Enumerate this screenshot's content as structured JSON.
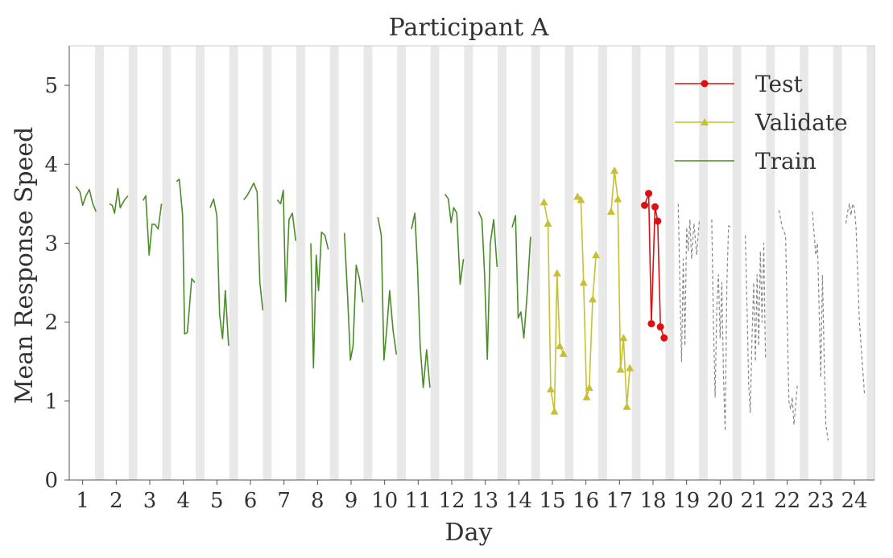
{
  "chart_data": {
    "type": "line",
    "title": "Participant A",
    "xlabel": "Day",
    "ylabel": "Mean Response Speed",
    "xlim": [
      0.6,
      24.6
    ],
    "ylim": [
      0,
      5.5
    ],
    "x_ticks": [
      1,
      2,
      3,
      4,
      5,
      6,
      7,
      8,
      9,
      10,
      11,
      12,
      13,
      14,
      15,
      16,
      17,
      18,
      19,
      20,
      21,
      22,
      23,
      24
    ],
    "y_ticks": [
      0,
      1,
      2,
      3,
      4,
      5
    ],
    "night_bands": [
      1.5,
      2.5,
      3.5,
      4.5,
      5.5,
      6.5,
      7.5,
      8.5,
      9.5,
      10.5,
      11.5,
      12.5,
      13.5,
      14.5,
      15.5,
      16.5,
      17.5,
      18.5,
      19.5,
      20.5,
      21.5,
      22.5,
      23.5,
      24.5
    ],
    "legend": {
      "position": "top-right",
      "entries": [
        "Test",
        "Validate",
        "Train"
      ]
    },
    "colors": {
      "train": "#4a8c2a",
      "validate": "#c8c030",
      "test": "#dd1111",
      "other": "#888888",
      "band": "#e8e8e8",
      "frame": "#cccccc"
    },
    "series": [
      {
        "name": "Train",
        "marker": "none",
        "style": "solid",
        "segments": [
          [
            [
              0.8,
              3.72
            ],
            [
              0.92,
              3.65
            ],
            [
              1.0,
              3.48
            ],
            [
              1.1,
              3.6
            ],
            [
              1.2,
              3.68
            ],
            [
              1.3,
              3.5
            ],
            [
              1.4,
              3.4
            ]
          ],
          [
            [
              1.8,
              3.5
            ],
            [
              1.88,
              3.48
            ],
            [
              1.95,
              3.38
            ],
            [
              2.05,
              3.69
            ],
            [
              2.12,
              3.45
            ],
            [
              2.25,
              3.55
            ],
            [
              2.35,
              3.6
            ]
          ],
          [
            [
              2.8,
              3.54
            ],
            [
              2.88,
              3.6
            ],
            [
              2.98,
              2.85
            ],
            [
              3.07,
              3.24
            ],
            [
              3.15,
              3.24
            ],
            [
              3.25,
              3.18
            ],
            [
              3.35,
              3.5
            ]
          ],
          [
            [
              3.8,
              3.78
            ],
            [
              3.88,
              3.81
            ],
            [
              3.98,
              3.35
            ],
            [
              4.04,
              1.85
            ],
            [
              4.12,
              1.87
            ],
            [
              4.25,
              2.55
            ],
            [
              4.35,
              2.5
            ]
          ],
          [
            [
              4.8,
              3.45
            ],
            [
              4.9,
              3.56
            ],
            [
              5.0,
              3.35
            ],
            [
              5.08,
              2.1
            ],
            [
              5.17,
              1.79
            ],
            [
              5.25,
              2.4
            ],
            [
              5.35,
              1.7
            ]
          ],
          [
            [
              5.8,
              3.55
            ],
            [
              5.9,
              3.6
            ],
            [
              6.0,
              3.68
            ],
            [
              6.1,
              3.76
            ],
            [
              6.2,
              3.65
            ],
            [
              6.28,
              2.5
            ],
            [
              6.37,
              2.15
            ]
          ],
          [
            [
              6.8,
              3.55
            ],
            [
              6.9,
              3.5
            ],
            [
              6.98,
              3.67
            ],
            [
              7.05,
              2.26
            ],
            [
              7.15,
              3.3
            ],
            [
              7.25,
              3.38
            ],
            [
              7.35,
              3.03
            ]
          ],
          [
            [
              7.8,
              3.0
            ],
            [
              7.88,
              1.42
            ],
            [
              7.96,
              2.85
            ],
            [
              8.03,
              2.4
            ],
            [
              8.12,
              3.14
            ],
            [
              8.22,
              3.1
            ],
            [
              8.32,
              2.92
            ]
          ],
          [
            [
              8.8,
              3.13
            ],
            [
              8.9,
              2.3
            ],
            [
              8.98,
              1.52
            ],
            [
              9.06,
              1.7
            ],
            [
              9.15,
              2.72
            ],
            [
              9.25,
              2.55
            ],
            [
              9.35,
              2.25
            ]
          ],
          [
            [
              9.8,
              3.33
            ],
            [
              9.9,
              3.1
            ],
            [
              9.98,
              1.52
            ],
            [
              10.06,
              1.9
            ],
            [
              10.15,
              2.4
            ],
            [
              10.25,
              1.9
            ],
            [
              10.35,
              1.59
            ]
          ],
          [
            [
              10.8,
              3.18
            ],
            [
              10.9,
              3.38
            ],
            [
              10.98,
              2.7
            ],
            [
              11.06,
              1.7
            ],
            [
              11.15,
              1.17
            ],
            [
              11.25,
              1.65
            ],
            [
              11.35,
              1.17
            ]
          ],
          [
            [
              11.8,
              3.62
            ],
            [
              11.9,
              3.56
            ],
            [
              11.98,
              3.26
            ],
            [
              12.06,
              3.45
            ],
            [
              12.15,
              3.38
            ],
            [
              12.25,
              2.48
            ],
            [
              12.35,
              2.8
            ]
          ],
          [
            [
              12.8,
              3.4
            ],
            [
              12.9,
              3.3
            ],
            [
              12.98,
              2.6
            ],
            [
              13.06,
              1.53
            ],
            [
              13.15,
              3.0
            ],
            [
              13.25,
              3.3
            ],
            [
              13.35,
              2.7
            ]
          ],
          [
            [
              13.8,
              3.2
            ],
            [
              13.9,
              3.35
            ],
            [
              13.98,
              2.05
            ],
            [
              14.06,
              2.13
            ],
            [
              14.15,
              1.8
            ],
            [
              14.25,
              2.38
            ],
            [
              14.35,
              3.08
            ]
          ]
        ]
      },
      {
        "name": "Validate",
        "marker": "triangle",
        "style": "solid",
        "segments": [
          [
            [
              14.75,
              3.52
            ],
            [
              14.87,
              3.25
            ],
            [
              14.95,
              1.15
            ],
            [
              15.06,
              0.87
            ],
            [
              15.14,
              2.62
            ],
            [
              15.22,
              1.7
            ],
            [
              15.33,
              1.6
            ]
          ],
          [
            [
              15.75,
              3.59
            ],
            [
              15.85,
              3.55
            ],
            [
              15.93,
              2.5
            ],
            [
              16.02,
              1.05
            ],
            [
              16.1,
              1.17
            ],
            [
              16.2,
              2.29
            ],
            [
              16.3,
              2.85
            ]
          ],
          [
            [
              16.75,
              3.4
            ],
            [
              16.85,
              3.92
            ],
            [
              16.95,
              3.56
            ],
            [
              17.03,
              1.4
            ],
            [
              17.12,
              1.8
            ],
            [
              17.22,
              0.93
            ],
            [
              17.31,
              1.42
            ]
          ]
        ]
      },
      {
        "name": "Test",
        "marker": "circle",
        "style": "solid",
        "segments": [
          [
            [
              17.75,
              3.48
            ],
            [
              17.87,
              3.63
            ],
            [
              17.95,
              1.98
            ],
            [
              18.06,
              3.46
            ],
            [
              18.14,
              3.28
            ],
            [
              18.22,
              1.94
            ],
            [
              18.33,
              1.8
            ]
          ]
        ]
      },
      {
        "name": "",
        "marker": "none",
        "style": "dashed",
        "segments": [
          [
            [
              18.75,
              3.5
            ],
            [
              18.8,
              2.5
            ],
            [
              18.85,
              1.5
            ],
            [
              18.9,
              2.8
            ],
            [
              18.95,
              1.7
            ],
            [
              19.0,
              3.2
            ],
            [
              19.05,
              2.9
            ],
            [
              19.1,
              3.3
            ],
            [
              19.15,
              2.8
            ],
            [
              19.22,
              3.25
            ],
            [
              19.3,
              2.85
            ],
            [
              19.38,
              3.3
            ]
          ],
          [
            [
              19.75,
              3.3
            ],
            [
              19.8,
              2.0
            ],
            [
              19.85,
              1.05
            ],
            [
              19.9,
              2.2
            ],
            [
              19.95,
              2.6
            ],
            [
              20.0,
              1.8
            ],
            [
              20.05,
              2.5
            ],
            [
              20.1,
              1.3
            ],
            [
              20.15,
              0.62
            ],
            [
              20.2,
              2.5
            ],
            [
              20.25,
              3.22
            ],
            [
              20.35,
              3.2
            ]
          ],
          [
            [
              20.75,
              3.1
            ],
            [
              20.8,
              2.2
            ],
            [
              20.85,
              1.2
            ],
            [
              20.9,
              0.85
            ],
            [
              20.95,
              1.8
            ],
            [
              21.0,
              2.5
            ],
            [
              21.05,
              1.5
            ],
            [
              21.1,
              2.6
            ],
            [
              21.15,
              1.7
            ],
            [
              21.2,
              2.9
            ],
            [
              21.25,
              2.0
            ],
            [
              21.3,
              3.0
            ],
            [
              21.35,
              1.55
            ]
          ],
          [
            [
              21.75,
              3.42
            ],
            [
              21.85,
              3.2
            ],
            [
              21.95,
              3.1
            ],
            [
              22.0,
              2.0
            ],
            [
              22.05,
              1.0
            ],
            [
              22.1,
              0.9
            ],
            [
              22.15,
              1.05
            ],
            [
              22.2,
              0.7
            ],
            [
              22.25,
              0.95
            ],
            [
              22.3,
              1.2
            ]
          ],
          [
            [
              22.75,
              3.4
            ],
            [
              22.85,
              2.85
            ],
            [
              22.9,
              3.0
            ],
            [
              22.95,
              2.2
            ],
            [
              23.0,
              1.3
            ],
            [
              23.05,
              2.6
            ],
            [
              23.1,
              1.55
            ],
            [
              23.15,
              0.7
            ],
            [
              23.22,
              0.5
            ]
          ],
          [
            [
              23.75,
              3.25
            ],
            [
              23.8,
              3.4
            ],
            [
              23.85,
              3.5
            ],
            [
              23.9,
              3.35
            ],
            [
              23.95,
              3.5
            ],
            [
              24.0,
              3.45
            ],
            [
              24.05,
              3.2
            ],
            [
              24.15,
              2.0
            ],
            [
              24.3,
              1.1
            ]
          ]
        ]
      }
    ]
  }
}
